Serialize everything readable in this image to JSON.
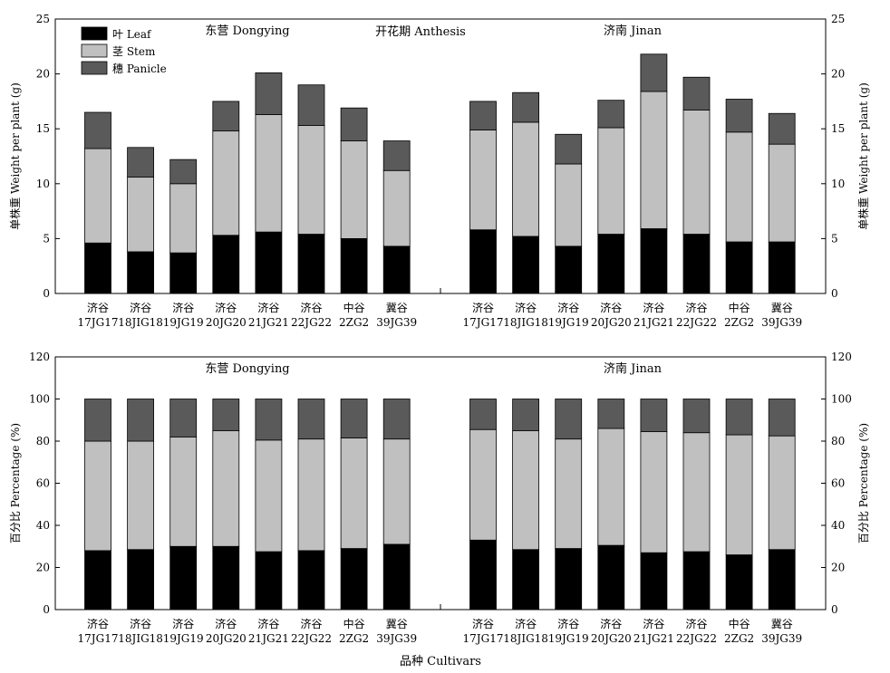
{
  "figure": {
    "stage_label": "开花期 Anthesis",
    "xlabel": "品种 Cultivars"
  },
  "colors": {
    "leaf": "#000000",
    "stem": "#c0c0c0",
    "panicle": "#5a5a5a"
  },
  "chart_data": [
    {
      "type": "bar",
      "stacked": true,
      "ylabel": "单株重 Weight per plant (g)",
      "ylim": [
        0,
        25
      ],
      "yticks": [
        0,
        5,
        10,
        15,
        20,
        25
      ],
      "legend": {
        "position": "top-left",
        "entries": [
          "叶 Leaf",
          "茎 Stem",
          "穗 Panicle"
        ]
      },
      "groups": [
        {
          "title": "东营 Dongying",
          "categories": [
            [
              "济谷",
              "17JG17"
            ],
            [
              "济谷",
              "18JIG18"
            ],
            [
              "济谷",
              "19JG19"
            ],
            [
              "济谷",
              "20JG20"
            ],
            [
              "济谷",
              "21JG21"
            ],
            [
              "济谷",
              "22JG22"
            ],
            [
              "中谷",
              "2ZG2"
            ],
            [
              "冀谷",
              "39JG39"
            ]
          ],
          "series": [
            {
              "name": "叶 Leaf",
              "values": [
                4.6,
                3.8,
                3.7,
                5.3,
                5.6,
                5.4,
                5.0,
                4.3
              ]
            },
            {
              "name": "茎 Stem",
              "values": [
                8.6,
                6.8,
                6.3,
                9.5,
                10.7,
                9.9,
                8.9,
                6.9
              ]
            },
            {
              "name": "穗 Panicle",
              "values": [
                3.3,
                2.7,
                2.2,
                2.7,
                3.8,
                3.7,
                3.0,
                2.7
              ]
            }
          ]
        },
        {
          "title": "济南 Jinan",
          "categories": [
            [
              "济谷",
              "17JG17"
            ],
            [
              "济谷",
              "18JIG18"
            ],
            [
              "济谷",
              "19JG19"
            ],
            [
              "济谷",
              "20JG20"
            ],
            [
              "济谷",
              "21JG21"
            ],
            [
              "济谷",
              "22JG22"
            ],
            [
              "中谷",
              "2ZG2"
            ],
            [
              "冀谷",
              "39JG39"
            ]
          ],
          "series": [
            {
              "name": "叶 Leaf",
              "values": [
                5.8,
                5.2,
                4.3,
                5.4,
                5.9,
                5.4,
                4.7,
                4.7
              ]
            },
            {
              "name": "茎 Stem",
              "values": [
                9.1,
                10.4,
                7.5,
                9.7,
                12.5,
                11.3,
                10.0,
                8.9
              ]
            },
            {
              "name": "穗 Panicle",
              "values": [
                2.6,
                2.7,
                2.7,
                2.5,
                3.4,
                3.0,
                3.0,
                2.8
              ]
            }
          ]
        }
      ]
    },
    {
      "type": "bar",
      "stacked": true,
      "ylabel": "百分比 Percentage (%)",
      "ylim": [
        0,
        120
      ],
      "yticks": [
        0,
        20,
        40,
        60,
        80,
        100,
        120
      ],
      "groups": [
        {
          "title": "东营 Dongying",
          "categories": [
            [
              "济谷",
              "17JG17"
            ],
            [
              "济谷",
              "18JIG18"
            ],
            [
              "济谷",
              "19JG19"
            ],
            [
              "济谷",
              "20JG20"
            ],
            [
              "济谷",
              "21JG21"
            ],
            [
              "济谷",
              "22JG22"
            ],
            [
              "中谷",
              "2ZG2"
            ],
            [
              "冀谷",
              "39JG39"
            ]
          ],
          "series": [
            {
              "name": "叶 Leaf",
              "values": [
                28,
                28.5,
                30,
                30,
                27.5,
                28,
                29,
                31
              ]
            },
            {
              "name": "茎 Stem",
              "values": [
                52,
                51.5,
                52,
                55,
                53,
                53,
                52.5,
                50
              ]
            },
            {
              "name": "穗 Panicle",
              "values": [
                20,
                20,
                18,
                15,
                19.5,
                19,
                18.5,
                19
              ]
            }
          ]
        },
        {
          "title": "济南 Jinan",
          "categories": [
            [
              "济谷",
              "17JG17"
            ],
            [
              "济谷",
              "18JIG18"
            ],
            [
              "济谷",
              "19JG19"
            ],
            [
              "济谷",
              "20JG20"
            ],
            [
              "济谷",
              "21JG21"
            ],
            [
              "济谷",
              "22JG22"
            ],
            [
              "中谷",
              "2ZG2"
            ],
            [
              "冀谷",
              "39JG39"
            ]
          ],
          "series": [
            {
              "name": "叶 Leaf",
              "values": [
                33,
                28.5,
                29,
                30.5,
                27,
                27.5,
                26,
                28.5
              ]
            },
            {
              "name": "茎 Stem",
              "values": [
                52.5,
                56.5,
                52,
                55.5,
                57.5,
                56.5,
                57,
                54
              ]
            },
            {
              "name": "穗 Panicle",
              "values": [
                14.5,
                15,
                19,
                14,
                15.5,
                16,
                17,
                17.5
              ]
            }
          ]
        }
      ]
    }
  ]
}
